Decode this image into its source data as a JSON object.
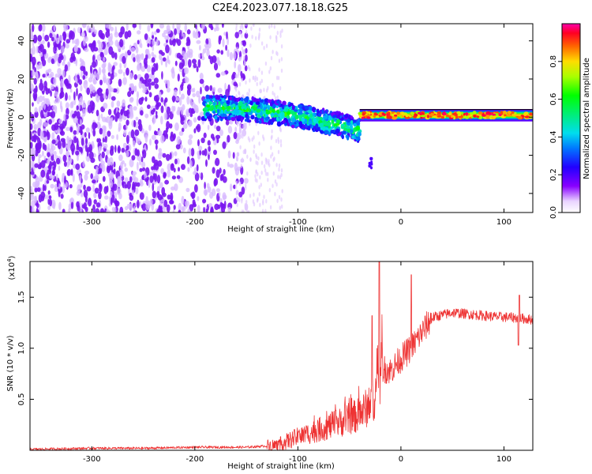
{
  "figure": {
    "title": "C2E4.2023.077.18.18.G25"
  },
  "chart_data": [
    {
      "type": "heatmap",
      "xlabel": "Height of straight line (km)",
      "ylabel": "Frequency (Hz)",
      "xlim": [
        -360,
        128
      ],
      "ylim": [
        -50,
        49
      ],
      "x_ticks": [
        -300,
        -200,
        -100,
        0,
        100
      ],
      "y_ticks": [
        -40,
        -20,
        0,
        20,
        40
      ],
      "colorbar": {
        "label": "Normalized spectral amplitude",
        "ticks": [
          0.0,
          0.2,
          0.4,
          0.6,
          0.8
        ],
        "range": [
          0,
          1
        ],
        "colormap": "rainbow (white-violet-blue-cyan-green-yellow-orange-red-magenta)"
      },
      "features": [
        {
          "region": "noise",
          "x_range": [
            -360,
            -155
          ],
          "y_range": [
            -50,
            49
          ],
          "amplitude": 0.08
        },
        {
          "region": "onset",
          "x_range": [
            -190,
            -40
          ],
          "center_y": [
            5,
            -8
          ],
          "amplitude": 0.45
        },
        {
          "region": "signal_band",
          "x_range": [
            -40,
            128
          ],
          "center_y": 1,
          "amplitude": 0.9
        }
      ]
    },
    {
      "type": "line",
      "xlabel": "Height of straight line (km)",
      "ylabel": "SNR (10 * v/v)",
      "y_multiplier": "(x10",
      "y_multiplier_exp": "4",
      "y_multiplier_close": ")",
      "xlim": [
        -360,
        128
      ],
      "ylim": [
        0,
        1.85
      ],
      "x_ticks": [
        -300,
        -200,
        -100,
        0,
        100
      ],
      "y_ticks": [
        0.5,
        1.0,
        1.5
      ],
      "y_tick_labels": [
        "0.5",
        "1.0",
        "1.5"
      ],
      "color": "#ee3333",
      "series": [
        {
          "x": [
            -360,
            -300,
            -250,
            -200,
            -150,
            -120,
            -100,
            -80,
            -60,
            -40,
            -30,
            -25,
            -20,
            -18,
            -10,
            0,
            10,
            20,
            30,
            50,
            70,
            90,
            110,
            128
          ],
          "values": [
            0.01,
            0.02,
            0.02,
            0.03,
            0.03,
            0.05,
            0.13,
            0.2,
            0.27,
            0.35,
            0.45,
            0.55,
            0.7,
            0.8,
            0.78,
            0.9,
            1.0,
            1.15,
            1.3,
            1.35,
            1.33,
            1.31,
            1.3,
            1.28
          ],
          "spikes": [
            {
              "x": -21,
              "y": 1.85
            },
            {
              "x": 10,
              "y": 1.72
            },
            {
              "x": -28,
              "y": 1.32
            },
            {
              "x": 115,
              "y": 1.52
            },
            {
              "x": 114,
              "y": 1.03
            }
          ]
        }
      ]
    }
  ]
}
